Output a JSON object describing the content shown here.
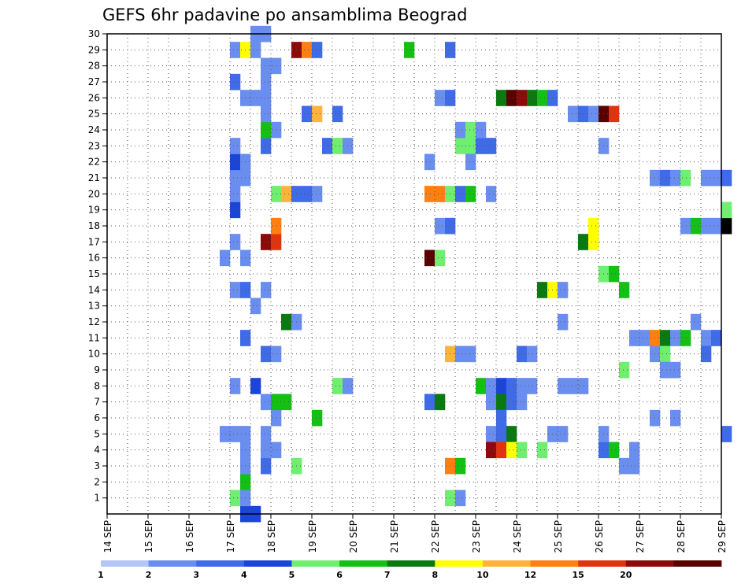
{
  "chart_data": {
    "type": "heatmap",
    "title": "GEFS 6hr padavine po ansamblima Beograd",
    "x_ticks": [
      "14 SEP",
      "15 SEP",
      "16 SEP",
      "17 SEP",
      "18 SEP",
      "19 SEP",
      "20 SEP",
      "21 SEP",
      "22 SEP",
      "23 SEP",
      "24 SEP",
      "25 SEP",
      "26 SEP",
      "27 SEP",
      "28 SEP",
      "29 SEP"
    ],
    "y_ticks": [
      "1",
      "2",
      "3",
      "4",
      "5",
      "6",
      "7",
      "8",
      "9",
      "10",
      "11",
      "12",
      "13",
      "14",
      "15",
      "16",
      "17",
      "18",
      "19",
      "20",
      "21",
      "22",
      "23",
      "24",
      "25",
      "26",
      "27",
      "28",
      "29",
      "30"
    ],
    "xlim_days": [
      0,
      15
    ],
    "ylim": [
      0,
      30
    ],
    "grid": true,
    "colorbar": {
      "labels": [
        "1",
        "2",
        "3",
        "4",
        "5",
        "6",
        "7",
        "8",
        "10",
        "12",
        "15",
        "20"
      ],
      "colors": [
        "#b3c6f5",
        "#6a8ef0",
        "#3f6ae8",
        "#1b45d8",
        "#6fef6f",
        "#15c015",
        "#0a7a10",
        "#ffff00",
        "#ffb33a",
        "#ff7f10",
        "#e0340f",
        "#8c0a0a",
        "#5a0000"
      ]
    },
    "cells": [
      [
        3.0,
        1,
        4
      ],
      [
        3.25,
        1,
        7
      ],
      [
        3.25,
        2,
        5
      ],
      [
        3.25,
        0,
        3
      ],
      [
        3.5,
        0,
        3
      ],
      [
        3.25,
        1,
        1
      ],
      [
        3.25,
        3,
        1
      ],
      [
        3.25,
        4,
        1
      ],
      [
        3.0,
        5,
        1
      ],
      [
        2.75,
        5,
        1
      ],
      [
        3.25,
        5,
        1
      ],
      [
        3.0,
        8,
        1
      ],
      [
        3.5,
        8,
        3
      ],
      [
        3.0,
        14,
        1
      ],
      [
        3.25,
        14,
        2
      ],
      [
        3.25,
        11,
        2
      ],
      [
        3.25,
        16,
        1
      ],
      [
        3.0,
        17,
        1
      ],
      [
        3.0,
        19,
        3
      ],
      [
        3.0,
        20,
        1
      ],
      [
        3.0,
        21,
        1
      ],
      [
        3.25,
        21,
        1
      ],
      [
        3.0,
        22,
        3
      ],
      [
        3.25,
        22,
        1
      ],
      [
        3.0,
        23,
        1
      ],
      [
        3.0,
        27,
        2
      ],
      [
        3.25,
        26,
        1
      ],
      [
        3.5,
        26,
        1
      ],
      [
        3.0,
        29,
        1
      ],
      [
        3.25,
        29,
        7
      ],
      [
        3.5,
        29,
        1
      ],
      [
        3.5,
        30,
        1
      ],
      [
        3.75,
        30,
        1
      ],
      [
        2.75,
        16,
        1
      ],
      [
        3.75,
        3,
        2
      ],
      [
        3.75,
        4,
        1
      ],
      [
        4.0,
        4,
        1
      ],
      [
        3.75,
        5,
        1
      ],
      [
        4.0,
        6,
        1
      ],
      [
        3.75,
        7,
        1
      ],
      [
        4.0,
        7,
        5
      ],
      [
        4.25,
        7,
        5
      ],
      [
        3.75,
        10,
        2
      ],
      [
        4.0,
        10,
        1
      ],
      [
        3.5,
        13,
        1
      ],
      [
        3.75,
        14,
        1
      ],
      [
        4.25,
        12,
        6
      ],
      [
        4.5,
        12,
        1
      ],
      [
        3.75,
        17,
        11
      ],
      [
        4.0,
        17,
        10
      ],
      [
        4.0,
        18,
        9
      ],
      [
        4.0,
        20,
        4
      ],
      [
        4.25,
        20,
        8
      ],
      [
        4.5,
        20,
        2
      ],
      [
        4.75,
        20,
        2
      ],
      [
        5.0,
        20,
        1
      ],
      [
        3.75,
        23,
        2
      ],
      [
        3.75,
        24,
        5
      ],
      [
        4.0,
        24,
        1
      ],
      [
        3.75,
        25,
        1
      ],
      [
        3.75,
        26,
        1
      ],
      [
        3.75,
        27,
        1
      ],
      [
        3.75,
        28,
        1
      ],
      [
        4.0,
        28,
        1
      ],
      [
        4.5,
        29,
        11
      ],
      [
        4.75,
        29,
        9
      ],
      [
        5.0,
        29,
        2
      ],
      [
        4.75,
        25,
        2
      ],
      [
        5.0,
        25,
        8
      ],
      [
        5.5,
        25,
        2
      ],
      [
        4.5,
        3,
        4
      ],
      [
        5.0,
        6,
        5
      ],
      [
        5.5,
        8,
        4
      ],
      [
        5.75,
        8,
        1
      ],
      [
        5.25,
        23,
        2
      ],
      [
        5.5,
        23,
        4
      ],
      [
        5.75,
        23,
        1
      ],
      [
        7.25,
        29,
        5
      ],
      [
        7.75,
        7,
        2
      ],
      [
        8.0,
        7,
        6
      ],
      [
        7.75,
        20,
        9
      ],
      [
        8.0,
        20,
        9
      ],
      [
        8.25,
        20,
        4
      ],
      [
        8.5,
        20,
        2
      ],
      [
        8.75,
        20,
        5
      ],
      [
        7.75,
        16,
        12
      ],
      [
        8.0,
        16,
        4
      ],
      [
        7.75,
        22,
        1
      ],
      [
        8.0,
        26,
        1
      ],
      [
        8.25,
        26,
        2
      ],
      [
        8.25,
        29,
        2
      ],
      [
        8.0,
        18,
        1
      ],
      [
        8.25,
        18,
        2
      ],
      [
        8.25,
        10,
        8
      ],
      [
        8.5,
        10,
        1
      ],
      [
        8.75,
        10,
        1
      ],
      [
        8.25,
        1,
        4
      ],
      [
        8.5,
        1,
        1
      ],
      [
        8.25,
        3,
        9
      ],
      [
        8.5,
        3,
        5
      ],
      [
        8.5,
        23,
        4
      ],
      [
        8.75,
        23,
        4
      ],
      [
        8.75,
        22,
        1
      ],
      [
        9.0,
        23,
        2
      ],
      [
        9.25,
        23,
        2
      ],
      [
        8.5,
        24,
        1
      ],
      [
        8.75,
        24,
        4
      ],
      [
        9.0,
        24,
        1
      ],
      [
        9.25,
        20,
        1
      ],
      [
        9.0,
        8,
        5
      ],
      [
        9.25,
        8,
        1
      ],
      [
        9.5,
        8,
        3
      ],
      [
        9.75,
        8,
        2
      ],
      [
        10.0,
        8,
        1
      ],
      [
        10.25,
        8,
        1
      ],
      [
        9.25,
        7,
        1
      ],
      [
        9.5,
        7,
        6
      ],
      [
        9.75,
        7,
        2
      ],
      [
        10.0,
        7,
        1
      ],
      [
        9.5,
        6,
        2
      ],
      [
        9.25,
        5,
        1
      ],
      [
        9.5,
        5,
        2
      ],
      [
        9.75,
        5,
        6
      ],
      [
        9.25,
        4,
        11
      ],
      [
        9.5,
        4,
        10
      ],
      [
        9.75,
        4,
        7
      ],
      [
        10.0,
        4,
        4
      ],
      [
        10.5,
        4,
        4
      ],
      [
        9.5,
        26,
        6
      ],
      [
        9.75,
        26,
        12
      ],
      [
        10.0,
        26,
        11
      ],
      [
        10.25,
        26,
        6
      ],
      [
        10.5,
        26,
        5
      ],
      [
        10.75,
        26,
        2
      ],
      [
        10.0,
        10,
        2
      ],
      [
        10.25,
        10,
        1
      ],
      [
        10.5,
        14,
        6
      ],
      [
        10.75,
        14,
        7
      ],
      [
        11.0,
        14,
        1
      ],
      [
        10.75,
        5,
        1
      ],
      [
        11.0,
        5,
        1
      ],
      [
        11.0,
        8,
        1
      ],
      [
        11.25,
        8,
        1
      ],
      [
        11.5,
        8,
        1
      ],
      [
        11.0,
        12,
        1
      ],
      [
        11.25,
        25,
        1
      ],
      [
        11.5,
        25,
        2
      ],
      [
        11.75,
        25,
        1
      ],
      [
        12.0,
        25,
        12
      ],
      [
        12.25,
        25,
        10
      ],
      [
        11.5,
        17,
        6
      ],
      [
        11.75,
        17,
        7
      ],
      [
        11.75,
        18,
        7
      ],
      [
        12.0,
        15,
        4
      ],
      [
        12.25,
        15,
        5
      ],
      [
        12.5,
        14,
        5
      ],
      [
        12.0,
        23,
        1
      ],
      [
        12.0,
        4,
        2
      ],
      [
        12.25,
        4,
        5
      ],
      [
        12.0,
        5,
        1
      ],
      [
        12.5,
        9,
        4
      ],
      [
        12.5,
        3,
        1
      ],
      [
        12.75,
        3,
        1
      ],
      [
        12.75,
        11,
        1
      ],
      [
        13.0,
        11,
        1
      ],
      [
        13.25,
        11,
        9
      ],
      [
        13.5,
        11,
        6
      ],
      [
        13.75,
        11,
        1
      ],
      [
        14.0,
        11,
        5
      ],
      [
        13.25,
        10,
        1
      ],
      [
        13.5,
        10,
        4
      ],
      [
        13.5,
        9,
        1
      ],
      [
        13.75,
        9,
        1
      ],
      [
        13.25,
        6,
        1
      ],
      [
        13.5,
        9,
        1
      ],
      [
        13.25,
        21,
        1
      ],
      [
        13.5,
        21,
        2
      ],
      [
        13.75,
        21,
        1
      ],
      [
        14.0,
        21,
        4
      ],
      [
        14.5,
        21,
        1
      ],
      [
        14.75,
        21,
        1
      ],
      [
        15.0,
        21,
        2
      ],
      [
        14.0,
        18,
        1
      ],
      [
        14.25,
        18,
        5
      ],
      [
        14.5,
        18,
        1
      ],
      [
        14.25,
        12,
        1
      ],
      [
        14.75,
        18,
        1
      ],
      [
        15.0,
        18,
        13
      ],
      [
        15.0,
        19,
        4
      ],
      [
        13.75,
        6,
        1
      ],
      [
        14.5,
        11,
        1
      ],
      [
        14.75,
        11,
        2
      ],
      [
        14.5,
        10,
        2
      ],
      [
        15.0,
        5,
        2
      ],
      [
        12.75,
        4,
        1
      ]
    ]
  }
}
